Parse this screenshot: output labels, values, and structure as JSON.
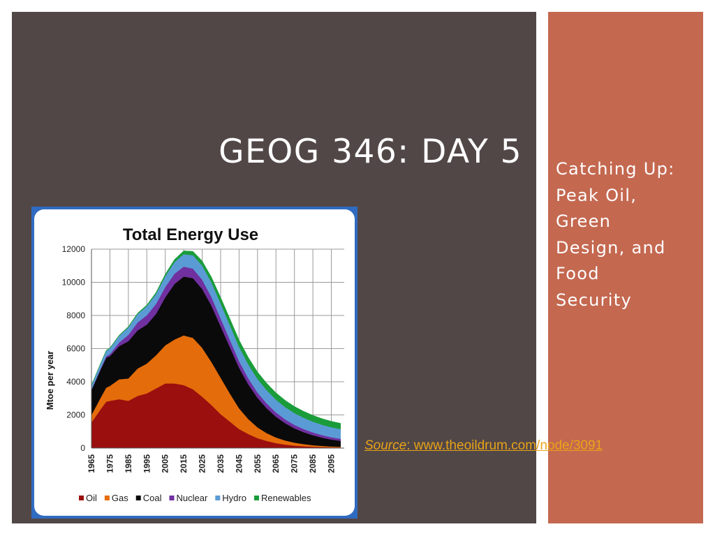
{
  "slide": {
    "title": "GEOG 346: DAY 5",
    "subtitle_lines": [
      "Catching Up:",
      "Peak Oil,",
      "Green",
      "Design, and",
      "Food",
      "Security"
    ],
    "source_label": "Source",
    "source_text": ": www.theoildrum.com/node/3091"
  },
  "colors": {
    "dark_panel": "#524747",
    "accent_panel": "#c46850",
    "source_link": "#e8a317",
    "chart_border": "#2f6bc0"
  },
  "chart_data": {
    "type": "area",
    "stacked": true,
    "title": "Total Energy Use",
    "ylabel": "Mtoe per year",
    "xlabel": "",
    "ylim": [
      0,
      12000
    ],
    "yticks": [
      0,
      2000,
      4000,
      6000,
      8000,
      10000,
      12000
    ],
    "xlim": [
      1965,
      2102
    ],
    "xticks": [
      1965,
      1975,
      1985,
      1995,
      2005,
      2015,
      2025,
      2035,
      2045,
      2055,
      2065,
      2075,
      2085,
      2095
    ],
    "grid": true,
    "legend_position": "bottom",
    "x": [
      1965,
      1970,
      1973,
      1975,
      1980,
      1985,
      1990,
      1995,
      2000,
      2005,
      2010,
      2015,
      2020,
      2025,
      2030,
      2035,
      2040,
      2045,
      2050,
      2055,
      2060,
      2065,
      2070,
      2075,
      2080,
      2085,
      2090,
      2095,
      2100
    ],
    "series": [
      {
        "name": "Oil",
        "color": "#9b0f0f",
        "values": [
          1550,
          2350,
          2800,
          2850,
          2950,
          2850,
          3150,
          3300,
          3600,
          3900,
          3900,
          3800,
          3550,
          3100,
          2600,
          2050,
          1600,
          1150,
          850,
          600,
          430,
          300,
          210,
          150,
          110,
          80,
          60,
          45,
          35
        ]
      },
      {
        "name": "Gas",
        "color": "#e46c0a",
        "values": [
          450,
          700,
          850,
          900,
          1200,
          1350,
          1650,
          1800,
          2000,
          2300,
          2650,
          3000,
          3100,
          2950,
          2600,
          2200,
          1700,
          1250,
          900,
          650,
          470,
          340,
          250,
          180,
          130,
          95,
          70,
          50,
          40
        ]
      },
      {
        "name": "Coal",
        "color": "#0a0a0a",
        "values": [
          1500,
          1700,
          1800,
          1800,
          2000,
          2250,
          2300,
          2350,
          2500,
          2900,
          3350,
          3550,
          3600,
          3550,
          3400,
          3100,
          2800,
          2450,
          2100,
          1780,
          1500,
          1250,
          1040,
          860,
          720,
          600,
          500,
          420,
          360
        ]
      },
      {
        "name": "Nuclear",
        "color": "#7030a0",
        "values": [
          30,
          60,
          90,
          120,
          220,
          380,
          480,
          560,
          600,
          620,
          620,
          600,
          580,
          560,
          520,
          480,
          440,
          400,
          360,
          320,
          290,
          260,
          230,
          210,
          190,
          170,
          155,
          140,
          130
        ]
      },
      {
        "name": "Hydro",
        "color": "#5b9bd5",
        "values": [
          250,
          300,
          330,
          350,
          400,
          450,
          500,
          550,
          600,
          650,
          700,
          750,
          800,
          850,
          880,
          900,
          880,
          860,
          840,
          820,
          800,
          770,
          740,
          710,
          680,
          650,
          620,
          600,
          580
        ]
      },
      {
        "name": "Renewables",
        "color": "#1a9c3a",
        "values": [
          20,
          20,
          30,
          30,
          40,
          50,
          60,
          70,
          90,
          120,
          160,
          200,
          240,
          280,
          320,
          360,
          390,
          410,
          420,
          420,
          420,
          415,
          410,
          400,
          390,
          380,
          370,
          360,
          350
        ]
      }
    ]
  }
}
